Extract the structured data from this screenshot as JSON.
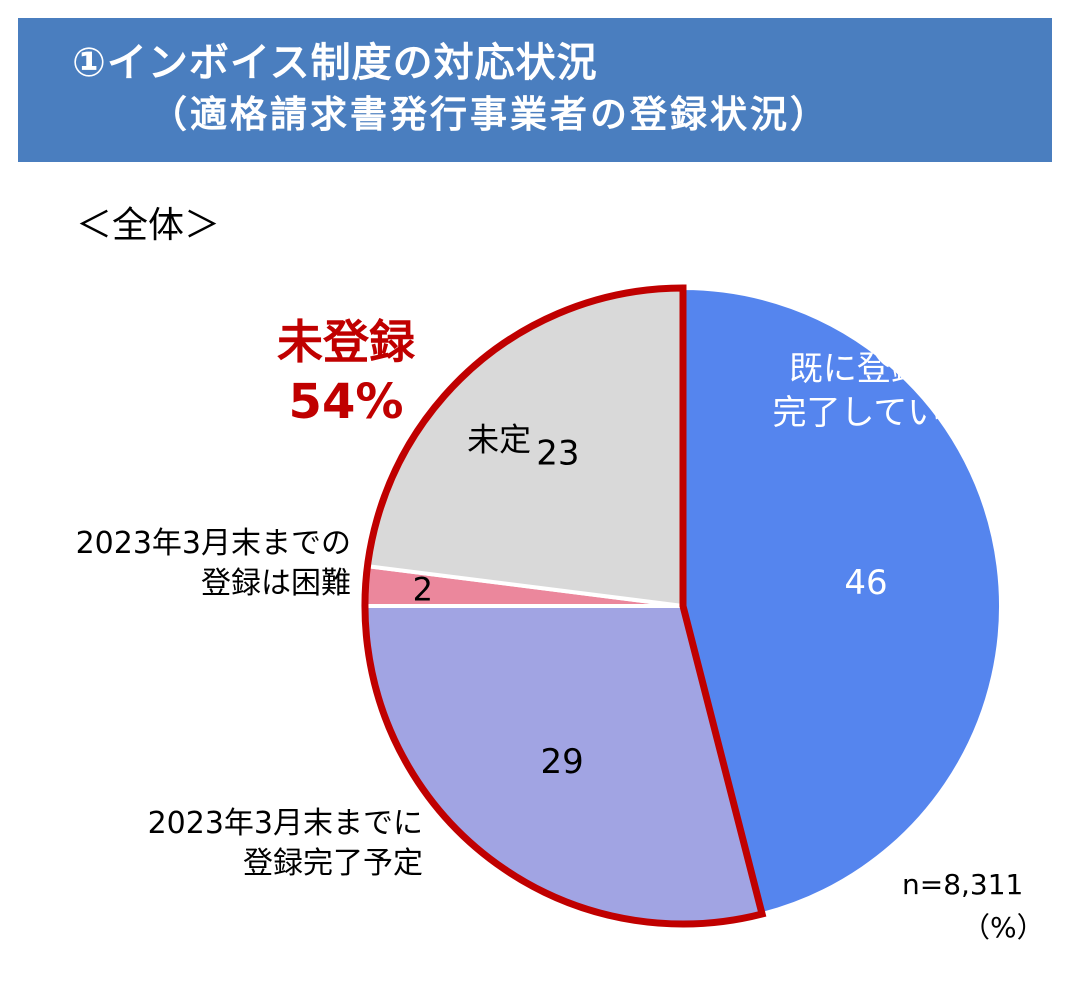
{
  "header": {
    "title_line1": "①インボイス制度の対応状況",
    "title_line2": "（適格請求書発行事業者の登録状況）"
  },
  "subtitle": "＜全体＞",
  "callout": {
    "label": "未登録",
    "value": "54%"
  },
  "footnote": {
    "n": "n=8,311",
    "unit": "（%）"
  },
  "colors": {
    "banner": "#4a7ebf",
    "accent_red": "#c00000",
    "registered": "#5585ee",
    "planned": "#a1a4e3",
    "difficult": "#eb879c",
    "undecided": "#d9d9d9"
  },
  "chart_data": {
    "type": "pie",
    "title": "",
    "unit": "%",
    "n": 8311,
    "slices": [
      {
        "name": "既に登録が完了している",
        "value": 46,
        "label": "46",
        "name_lines": [
          "既に登録が",
          "完了している"
        ],
        "color": "#5585ee",
        "label_color": "#ffffff"
      },
      {
        "name": "2023年3月末までに登録完了予定",
        "value": 29,
        "label": "29",
        "name_lines": [
          "2023年3月末までに",
          "登録完了予定"
        ],
        "color": "#a1a4e3",
        "label_color": "#000000"
      },
      {
        "name": "2023年3月末までの登録は困難",
        "value": 2,
        "label": "2",
        "name_lines": [
          "2023年3月末までの",
          "登録は困難"
        ],
        "color": "#eb879c",
        "label_color": "#000000"
      },
      {
        "name": "未定",
        "value": 23,
        "label": "23",
        "name_lines": [
          "未定"
        ],
        "color": "#d9d9d9",
        "label_color": "#000000"
      }
    ],
    "highlight": {
      "label": "未登録",
      "value": "54%",
      "covers": [
        "2023年3月末までに登録完了予定",
        "2023年3月末までの登録は困難",
        "未定"
      ]
    }
  }
}
